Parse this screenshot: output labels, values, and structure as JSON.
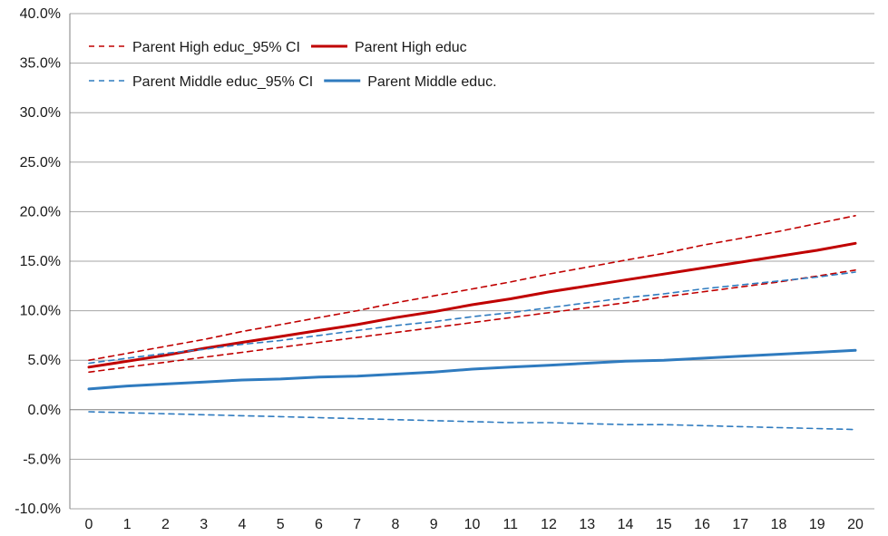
{
  "chart_data": {
    "type": "line",
    "title": "",
    "xlabel": "",
    "ylabel": "",
    "x": [
      0,
      1,
      2,
      3,
      4,
      5,
      6,
      7,
      8,
      9,
      10,
      11,
      12,
      13,
      14,
      15,
      16,
      17,
      18,
      19,
      20
    ],
    "ylim": [
      -10,
      40
    ],
    "y_ticks": [
      "-10.0%",
      "-5.0%",
      "0.0%",
      "5.0%",
      "10.0%",
      "15.0%",
      "20.0%",
      "25.0%",
      "30.0%",
      "35.0%",
      "40.0%"
    ],
    "y_tick_values": [
      -10,
      -5,
      0,
      5,
      10,
      15,
      20,
      25,
      30,
      35,
      40
    ],
    "x_ticks": [
      "0",
      "1",
      "2",
      "3",
      "4",
      "5",
      "6",
      "7",
      "8",
      "9",
      "10",
      "11",
      "12",
      "13",
      "14",
      "15",
      "16",
      "17",
      "18",
      "19",
      "20"
    ],
    "grid": true,
    "legend_position": "top-left",
    "series": [
      {
        "name": "Parent High educ_95% CI",
        "style": "dashed",
        "color": "#c00000",
        "values": [
          5.0,
          5.7,
          6.4,
          7.1,
          7.9,
          8.6,
          9.3,
          10.0,
          10.8,
          11.5,
          12.2,
          12.9,
          13.7,
          14.4,
          15.1,
          15.8,
          16.6,
          17.3,
          18.0,
          18.8,
          19.6
        ]
      },
      {
        "name": "",
        "style": "dashed",
        "color": "#c00000",
        "values": [
          3.8,
          4.3,
          4.8,
          5.3,
          5.8,
          6.3,
          6.8,
          7.3,
          7.8,
          8.3,
          8.8,
          9.3,
          9.8,
          10.3,
          10.8,
          11.4,
          11.9,
          12.4,
          12.9,
          13.5,
          14.1
        ]
      },
      {
        "name": "Parent High educ",
        "style": "solid",
        "color": "#c00000",
        "values": [
          4.3,
          4.9,
          5.5,
          6.2,
          6.8,
          7.4,
          8.0,
          8.6,
          9.3,
          9.9,
          10.6,
          11.2,
          11.9,
          12.5,
          13.1,
          13.7,
          14.3,
          14.9,
          15.5,
          16.1,
          16.8
        ]
      },
      {
        "name": "Parent Middle educ_95% CI",
        "style": "dashed",
        "color": "#2f7bbf",
        "values": [
          4.7,
          5.2,
          5.7,
          6.1,
          6.6,
          7.0,
          7.5,
          8.0,
          8.5,
          8.9,
          9.4,
          9.8,
          10.3,
          10.8,
          11.3,
          11.7,
          12.2,
          12.6,
          13.0,
          13.4,
          13.9
        ]
      },
      {
        "name": "",
        "style": "dashed",
        "color": "#2f7bbf",
        "values": [
          -0.2,
          -0.3,
          -0.4,
          -0.5,
          -0.6,
          -0.7,
          -0.8,
          -0.9,
          -1.0,
          -1.1,
          -1.2,
          -1.3,
          -1.3,
          -1.4,
          -1.5,
          -1.5,
          -1.6,
          -1.7,
          -1.8,
          -1.9,
          -2.0
        ]
      },
      {
        "name": "Parent Middle educ.",
        "style": "solid",
        "color": "#2f7bbf",
        "values": [
          2.1,
          2.4,
          2.6,
          2.8,
          3.0,
          3.1,
          3.3,
          3.4,
          3.6,
          3.8,
          4.1,
          4.3,
          4.5,
          4.7,
          4.9,
          5.0,
          5.2,
          5.4,
          5.6,
          5.8,
          6.0
        ]
      }
    ],
    "legend": [
      {
        "label": "Parent High educ_95% CI",
        "style": "dashed",
        "color": "#c00000"
      },
      {
        "label": "Parent High educ",
        "style": "solid",
        "color": "#c00000"
      },
      {
        "label": "Parent Middle educ_95% CI",
        "style": "dashed",
        "color": "#2f7bbf"
      },
      {
        "label": "Parent Middle educ.",
        "style": "solid",
        "color": "#2f7bbf"
      }
    ]
  }
}
